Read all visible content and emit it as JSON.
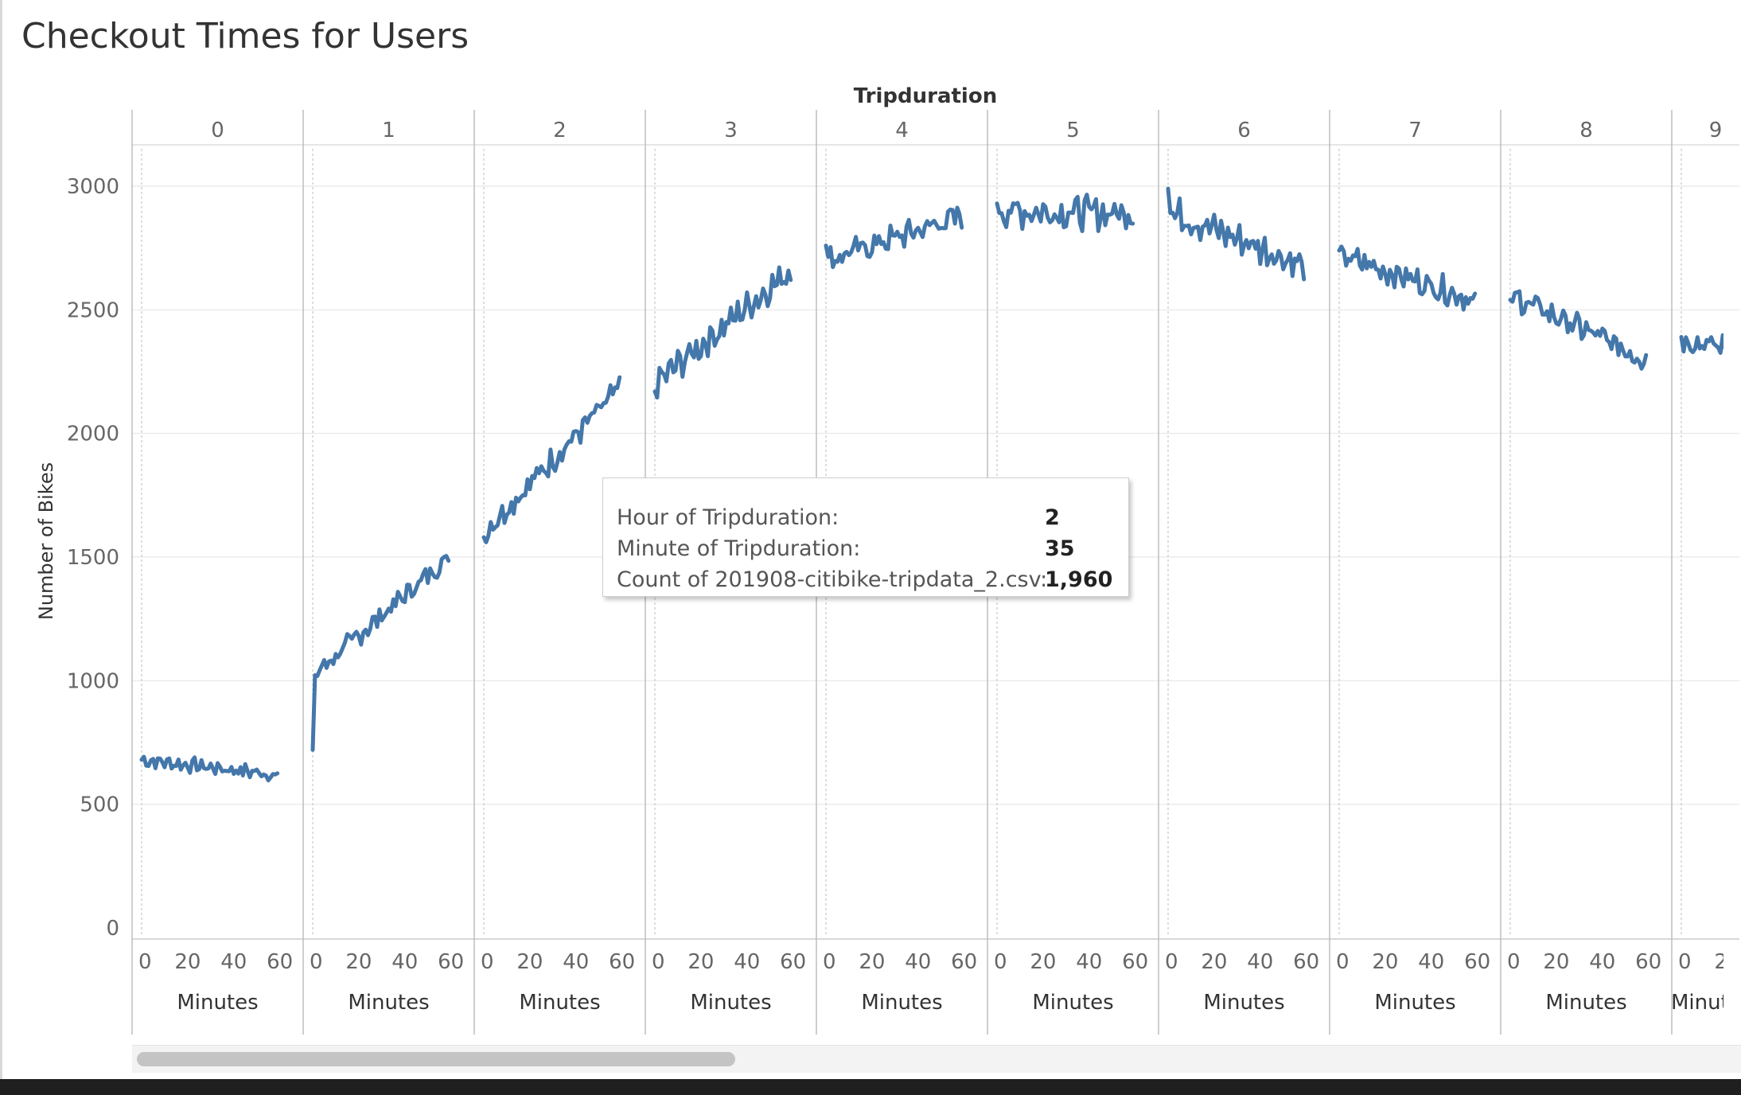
{
  "title": "Checkout Times for Users",
  "tooltip": {
    "rows": [
      {
        "label": "Hour of Tripduration:",
        "value": "2"
      },
      {
        "label": "Minute of Tripduration:",
        "value": "35"
      },
      {
        "label": "Count of 201908-citibike-tripdata_2.csv:",
        "value": "1,960"
      }
    ]
  },
  "chart_data": {
    "type": "line",
    "title": "Checkout Times for Users",
    "column_header": "Tripduration",
    "panels": [
      "0",
      "1",
      "2",
      "3",
      "4",
      "5",
      "6",
      "7",
      "8",
      "9"
    ],
    "ylabel": "Number of Bikes",
    "xlabel": "Minutes",
    "ylim": [
      0,
      3200
    ],
    "xlim": [
      0,
      66
    ],
    "yticks": [
      0,
      500,
      1000,
      1500,
      2000,
      2500,
      3000
    ],
    "xticks": [
      0,
      20,
      40,
      60
    ],
    "grid": true,
    "line_color": "#4477aa",
    "series": [
      {
        "hour": 0,
        "start": 680,
        "end": 620,
        "noise": 25,
        "first": 680
      },
      {
        "hour": 1,
        "start": 1020,
        "end": 1500,
        "noise": 35,
        "first": 720
      },
      {
        "hour": 2,
        "start": 1600,
        "end": 2180,
        "noise": 45,
        "first": 1580
      },
      {
        "hour": 3,
        "start": 2200,
        "end": 2660,
        "noise": 50,
        "first": 2170
      },
      {
        "hour": 4,
        "start": 2700,
        "end": 2880,
        "noise": 45,
        "first": 2760
      },
      {
        "hour": 5,
        "start": 2900,
        "end": 2890,
        "noise": 55,
        "first": 2930
      },
      {
        "hour": 6,
        "start": 2900,
        "end": 2680,
        "noise": 55,
        "first": 2990
      },
      {
        "hour": 7,
        "start": 2720,
        "end": 2540,
        "noise": 45,
        "first": 2740
      },
      {
        "hour": 8,
        "start": 2560,
        "end": 2300,
        "noise": 45,
        "first": 2540
      },
      {
        "hour": 9,
        "start": 2380,
        "end": 2280,
        "noise": 40,
        "first": 2390
      }
    ]
  }
}
